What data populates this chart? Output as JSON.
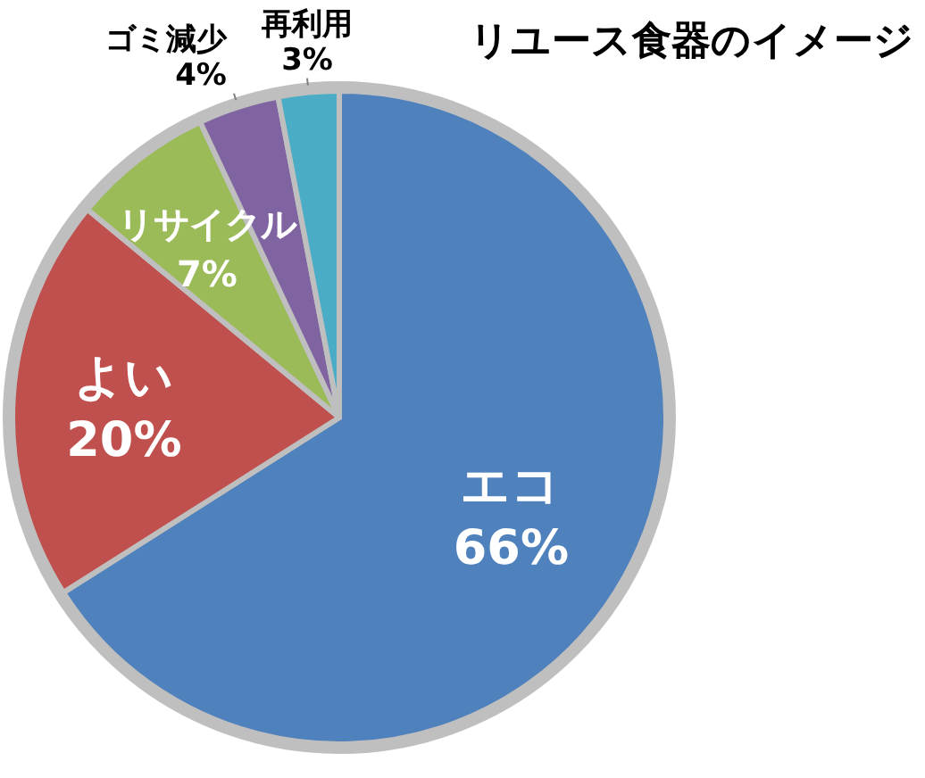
{
  "chart_data": {
    "type": "pie",
    "title": "リユース食器のイメージ",
    "categories": [
      "エコ",
      "よい",
      "リサイクル",
      "ゴミ減少",
      "再利用"
    ],
    "values": [
      66,
      20,
      7,
      4,
      3
    ],
    "colors": [
      "#4f81bd",
      "#c0504d",
      "#9bbb59",
      "#8064a2",
      "#4bacc6"
    ],
    "value_labels": [
      "66%",
      "20%",
      "7%",
      "4%",
      "3%"
    ]
  }
}
